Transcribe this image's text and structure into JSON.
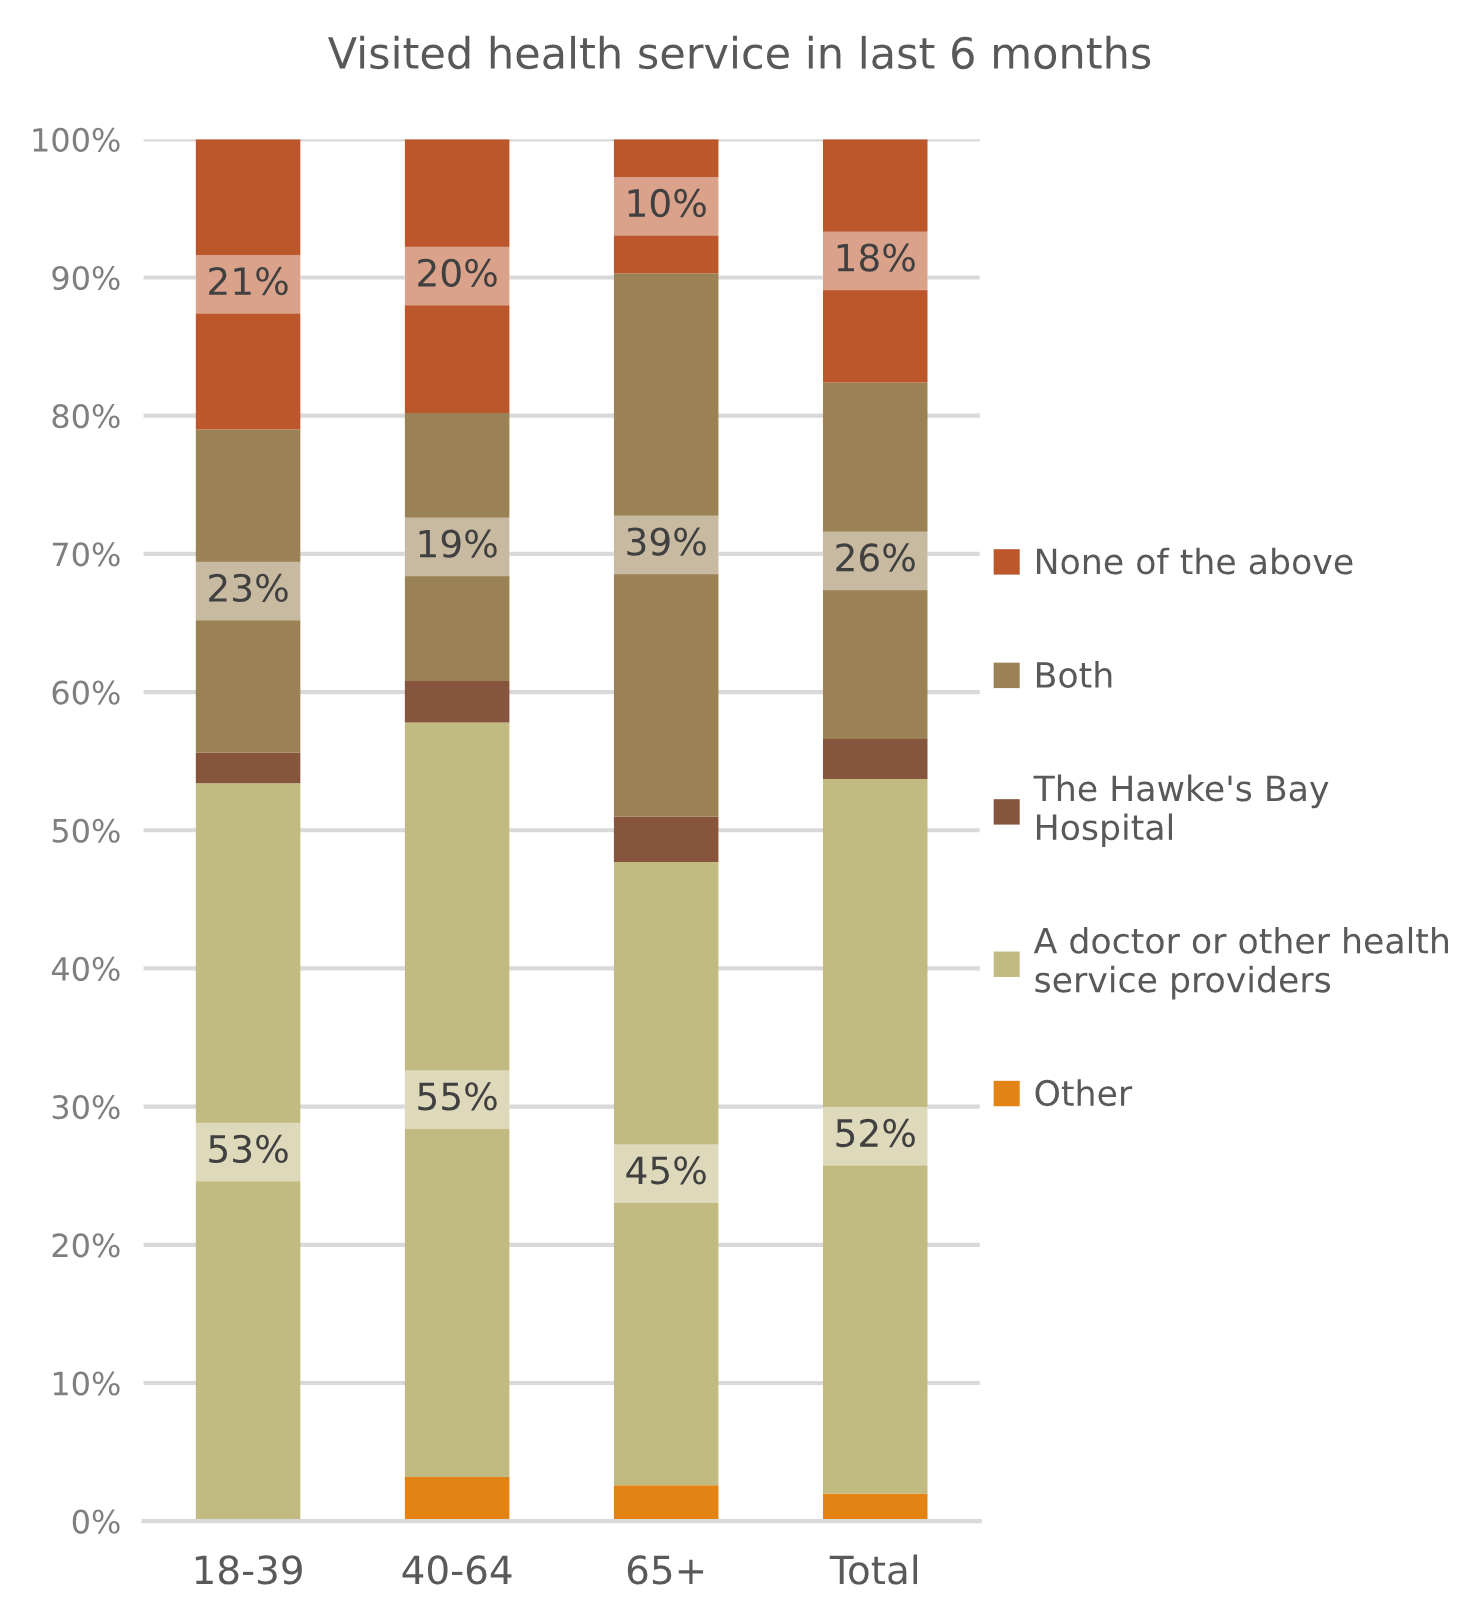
{
  "chart_data": {
    "type": "bar",
    "title": "Visited health service in last 6 months",
    "categories": [
      "18-39",
      "40-64",
      "65+",
      "Total"
    ],
    "stacked": true,
    "series": [
      {
        "name": "Other",
        "color": "#e38314",
        "values": [
          0,
          3.2,
          2.6,
          2.0
        ],
        "value_labels": [
          null,
          null,
          null,
          null
        ]
      },
      {
        "name": "A doctor or other health\nservice providers",
        "color": "#c2bb81",
        "values": [
          53.4,
          54.6,
          45.1,
          51.7
        ],
        "value_labels": [
          "53%",
          "55%",
          "45%",
          "52%"
        ]
      },
      {
        "name": "The Hawke's Bay\nHospital",
        "color": "#87553d",
        "values": [
          2.2,
          3.0,
          3.3,
          2.9
        ],
        "value_labels": [
          null,
          null,
          null,
          null
        ]
      },
      {
        "name": "Both",
        "color": "#9b8255",
        "values": [
          23.4,
          19.4,
          39.3,
          25.8
        ],
        "value_labels": [
          "23%",
          "19%",
          "39%",
          "26%"
        ]
      },
      {
        "name": "None of the above",
        "color": "#bc572b",
        "values": [
          21.0,
          19.8,
          9.7,
          17.6
        ],
        "value_labels": [
          "21%",
          "20%",
          "10%",
          "18%"
        ]
      }
    ],
    "ylim": [
      0,
      100
    ],
    "yticks": [
      {
        "value": 0,
        "label": "0%"
      },
      {
        "value": 10,
        "label": "10%"
      },
      {
        "value": 20,
        "label": "20%"
      },
      {
        "value": 30,
        "label": "30%"
      },
      {
        "value": 40,
        "label": "40%"
      },
      {
        "value": 50,
        "label": "50%"
      },
      {
        "value": 60,
        "label": "60%"
      },
      {
        "value": 70,
        "label": "70%"
      },
      {
        "value": 80,
        "label": "80%"
      },
      {
        "value": 90,
        "label": "90%"
      },
      {
        "value": 100,
        "label": "100%"
      }
    ],
    "grid": "y",
    "legend": "right"
  }
}
